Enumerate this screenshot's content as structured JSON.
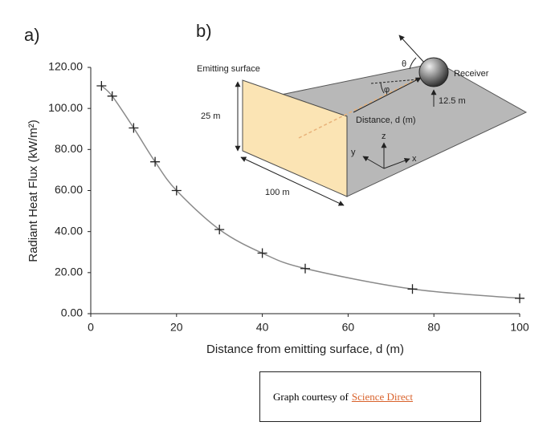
{
  "chart_data": {
    "type": "scatter",
    "panel_label": "a)",
    "x": [
      2.5,
      5,
      10,
      15,
      20,
      30,
      40,
      50,
      75,
      100
    ],
    "values": [
      111,
      106,
      90.5,
      74,
      60,
      41,
      29.5,
      22,
      12,
      7.5
    ],
    "marker": "plus",
    "color": "#222222",
    "smooth_line": true,
    "line_color": "#8a8a8a",
    "xlim": [
      0,
      100
    ],
    "xticks": [
      0,
      20,
      40,
      60,
      80,
      100
    ],
    "ylim": [
      0,
      120
    ],
    "yticks": [
      {
        "value": 0,
        "label": "0.00"
      },
      {
        "value": 20,
        "label": "20.00"
      },
      {
        "value": 40,
        "label": "40.00"
      },
      {
        "value": 60,
        "label": "60.00"
      },
      {
        "value": 80,
        "label": "80.00"
      },
      {
        "value": 100,
        "label": "100.00"
      },
      {
        "value": 120,
        "label": "120.00"
      }
    ],
    "xlabel": "Distance from emitting surface, d (m)",
    "ylabel": "Radiant Heat Flux (kW/m²)"
  },
  "diagram": {
    "panel_label": "b)",
    "emitting_surface": "Emitting surface",
    "height": "25 m",
    "width": "100 m",
    "distance": "Distance, d (m)",
    "receiver": "Receiver",
    "receiver_height": "12.5 m",
    "theta": "θ",
    "phi": "φ",
    "axis_z": "z",
    "axis_y": "y",
    "axis_x": "x"
  },
  "caption": {
    "text": "Graph courtesy of",
    "link": "Science Direct"
  }
}
